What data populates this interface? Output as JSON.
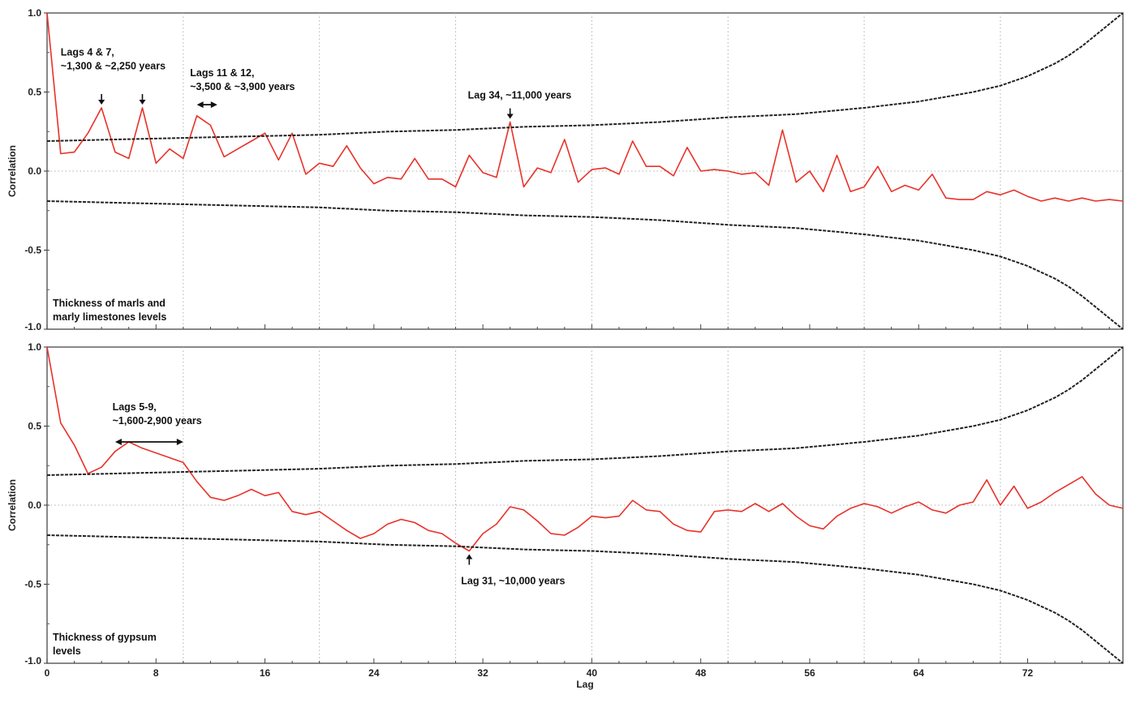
{
  "chart_data": [
    {
      "type": "line",
      "x_axis": {
        "label": "Lag",
        "range": [
          0,
          79
        ],
        "ticks": [
          "0",
          "8",
          "16",
          "24",
          "32",
          "40",
          "48",
          "56",
          "64",
          "72"
        ],
        "tick_values": [
          0,
          8,
          16,
          24,
          32,
          40,
          48,
          56,
          64,
          72
        ]
      },
      "y_axis": {
        "label": "Correlation",
        "range": [
          -1.0,
          1.0
        ],
        "ticks": [
          "1.0",
          "0.5",
          "0.0",
          "-0.5",
          "-1.0"
        ],
        "tick_values": [
          1.0,
          0.5,
          0.0,
          -0.5,
          -1.0
        ]
      },
      "grid": {
        "vertical_dotted_at": [
          10,
          20,
          30,
          40,
          50,
          60,
          70
        ],
        "horizontal_dotted_at": [
          0.0
        ]
      },
      "caption": [
        "Thickness of marls and",
        "marly limestones levels"
      ],
      "series": [
        {
          "role": "correlation",
          "color": "#e8322a",
          "x": [
            0,
            1,
            2,
            3,
            4,
            5,
            6,
            7,
            8,
            9,
            10,
            11,
            12,
            13,
            14,
            15,
            16,
            17,
            18,
            19,
            20,
            21,
            22,
            23,
            24,
            25,
            26,
            27,
            28,
            29,
            30,
            31,
            32,
            33,
            34,
            35,
            36,
            37,
            38,
            39,
            40,
            41,
            42,
            43,
            44,
            45,
            46,
            47,
            48,
            49,
            50,
            51,
            52,
            53,
            54,
            55,
            56,
            57,
            58,
            59,
            60,
            61,
            62,
            63,
            64,
            65,
            66,
            67,
            68,
            69,
            70,
            71,
            72,
            73,
            74,
            75,
            76,
            77,
            78,
            79
          ],
          "y": [
            1.0,
            0.11,
            0.12,
            0.24,
            0.4,
            0.12,
            0.08,
            0.4,
            0.05,
            0.14,
            0.08,
            0.35,
            0.29,
            0.09,
            0.14,
            0.19,
            0.24,
            0.07,
            0.24,
            -0.02,
            0.05,
            0.03,
            0.16,
            0.02,
            -0.08,
            -0.04,
            -0.05,
            0.08,
            -0.05,
            -0.05,
            -0.1,
            0.1,
            -0.01,
            -0.04,
            0.31,
            -0.1,
            0.02,
            -0.01,
            0.2,
            -0.07,
            0.01,
            0.02,
            -0.02,
            0.19,
            0.03,
            0.03,
            -0.03,
            0.15,
            0.0,
            0.01,
            0.0,
            -0.02,
            -0.01,
            -0.09,
            0.26,
            -0.07,
            0.0,
            -0.13,
            0.1,
            -0.13,
            -0.1,
            0.03,
            -0.13,
            -0.09,
            -0.12,
            -0.02,
            -0.17,
            -0.18,
            -0.18,
            -0.13,
            -0.15,
            -0.12,
            -0.16,
            -0.19,
            -0.17,
            -0.19,
            -0.17,
            -0.19,
            -0.18,
            -0.19
          ]
        },
        {
          "role": "upper-confidence-band",
          "color": "#222222",
          "x": [
            0,
            5,
            10,
            15,
            20,
            25,
            30,
            35,
            40,
            45,
            50,
            55,
            60,
            62,
            64,
            66,
            68,
            70,
            72,
            73,
            74,
            75,
            76,
            77,
            78,
            79
          ],
          "y": [
            0.19,
            0.2,
            0.21,
            0.22,
            0.23,
            0.25,
            0.26,
            0.28,
            0.29,
            0.31,
            0.34,
            0.36,
            0.4,
            0.42,
            0.44,
            0.47,
            0.5,
            0.54,
            0.6,
            0.64,
            0.68,
            0.73,
            0.79,
            0.86,
            0.93,
            1.0
          ]
        },
        {
          "role": "lower-confidence-band",
          "color": "#222222",
          "x": [
            0,
            5,
            10,
            15,
            20,
            25,
            30,
            35,
            40,
            45,
            50,
            55,
            60,
            62,
            64,
            66,
            68,
            70,
            72,
            73,
            74,
            75,
            76,
            77,
            78,
            79
          ],
          "y": [
            -0.19,
            -0.2,
            -0.21,
            -0.22,
            -0.23,
            -0.25,
            -0.26,
            -0.28,
            -0.29,
            -0.31,
            -0.34,
            -0.36,
            -0.4,
            -0.42,
            -0.44,
            -0.47,
            -0.5,
            -0.54,
            -0.6,
            -0.64,
            -0.68,
            -0.73,
            -0.79,
            -0.86,
            -0.93,
            -1.0
          ]
        }
      ],
      "annotations": [
        {
          "lines": [
            "Lags 4 & 7,",
            "~1,300 & ~2,250 years"
          ],
          "marker": "down-arrows",
          "at_lags": [
            4,
            7
          ],
          "text_at": [
            1,
            0.73
          ]
        },
        {
          "lines": [
            "Lags 11 & 12,",
            "~3,500 & ~3,900 years"
          ],
          "marker": "double-arrow",
          "from_lag": 11,
          "to_lag": 12.5,
          "marker_y": 0.42,
          "text_at": [
            10.5,
            0.6
          ]
        },
        {
          "lines": [
            "Lag 34, ~11,000 years"
          ],
          "marker": "down-arrows",
          "at_lags": [
            34
          ],
          "text_at": [
            30.9,
            0.46
          ]
        }
      ]
    },
    {
      "type": "line",
      "x_axis": {
        "label": "Lag",
        "range": [
          0,
          79
        ],
        "ticks": [
          "0",
          "8",
          "16",
          "24",
          "32",
          "40",
          "48",
          "56",
          "64",
          "72"
        ],
        "tick_values": [
          0,
          8,
          16,
          24,
          32,
          40,
          48,
          56,
          64,
          72
        ]
      },
      "y_axis": {
        "label": "Correlation",
        "range": [
          -1.0,
          1.0
        ],
        "ticks": [
          "1.0",
          "0.5",
          "0.0",
          "-0.5",
          "-1.0"
        ],
        "tick_values": [
          1.0,
          0.5,
          0.0,
          -0.5,
          -1.0
        ]
      },
      "grid": {
        "vertical_dotted_at": [
          10,
          20,
          30,
          40,
          50,
          60,
          70
        ],
        "horizontal_dotted_at": [
          0.0
        ]
      },
      "caption": [
        "Thickness of gypsum",
        "levels"
      ],
      "series": [
        {
          "role": "correlation",
          "color": "#e8322a",
          "x": [
            0,
            1,
            2,
            3,
            4,
            5,
            6,
            7,
            8,
            9,
            10,
            11,
            12,
            13,
            14,
            15,
            16,
            17,
            18,
            19,
            20,
            21,
            22,
            23,
            24,
            25,
            26,
            27,
            28,
            29,
            30,
            31,
            32,
            33,
            34,
            35,
            36,
            37,
            38,
            39,
            40,
            41,
            42,
            43,
            44,
            45,
            46,
            47,
            48,
            49,
            50,
            51,
            52,
            53,
            54,
            55,
            56,
            57,
            58,
            59,
            60,
            61,
            62,
            63,
            64,
            65,
            66,
            67,
            68,
            69,
            70,
            71,
            72,
            73,
            74,
            75,
            76,
            77,
            78,
            79
          ],
          "y": [
            1.0,
            0.52,
            0.38,
            0.2,
            0.24,
            0.34,
            0.4,
            0.36,
            0.33,
            0.3,
            0.27,
            0.15,
            0.05,
            0.03,
            0.06,
            0.1,
            0.06,
            0.08,
            -0.04,
            -0.06,
            -0.04,
            -0.1,
            -0.16,
            -0.21,
            -0.18,
            -0.12,
            -0.09,
            -0.11,
            -0.16,
            -0.18,
            -0.24,
            -0.29,
            -0.18,
            -0.12,
            -0.01,
            -0.03,
            -0.1,
            -0.18,
            -0.19,
            -0.14,
            -0.07,
            -0.08,
            -0.07,
            0.03,
            -0.03,
            -0.04,
            -0.12,
            -0.16,
            -0.17,
            -0.04,
            -0.03,
            -0.04,
            0.01,
            -0.04,
            0.01,
            -0.07,
            -0.13,
            -0.15,
            -0.07,
            -0.02,
            0.01,
            -0.01,
            -0.05,
            -0.01,
            0.02,
            -0.03,
            -0.05,
            0.0,
            0.02,
            0.16,
            0.0,
            0.12,
            -0.02,
            0.02,
            0.08,
            0.13,
            0.18,
            0.07,
            0.0,
            -0.02
          ]
        },
        {
          "role": "upper-confidence-band",
          "color": "#222222",
          "x": [
            0,
            5,
            10,
            15,
            20,
            25,
            30,
            35,
            40,
            45,
            50,
            55,
            60,
            62,
            64,
            66,
            68,
            70,
            72,
            73,
            74,
            75,
            76,
            77,
            78,
            79
          ],
          "y": [
            0.19,
            0.2,
            0.21,
            0.22,
            0.23,
            0.25,
            0.26,
            0.28,
            0.29,
            0.31,
            0.34,
            0.36,
            0.4,
            0.42,
            0.44,
            0.47,
            0.5,
            0.54,
            0.6,
            0.64,
            0.68,
            0.73,
            0.79,
            0.86,
            0.93,
            1.0
          ]
        },
        {
          "role": "lower-confidence-band",
          "color": "#222222",
          "x": [
            0,
            5,
            10,
            15,
            20,
            25,
            30,
            35,
            40,
            45,
            50,
            55,
            60,
            62,
            64,
            66,
            68,
            70,
            72,
            73,
            74,
            75,
            76,
            77,
            78,
            79
          ],
          "y": [
            -0.19,
            -0.2,
            -0.21,
            -0.22,
            -0.23,
            -0.25,
            -0.26,
            -0.28,
            -0.29,
            -0.31,
            -0.34,
            -0.36,
            -0.4,
            -0.42,
            -0.44,
            -0.47,
            -0.5,
            -0.54,
            -0.6,
            -0.64,
            -0.68,
            -0.73,
            -0.79,
            -0.86,
            -0.93,
            -1.0
          ]
        }
      ],
      "annotations": [
        {
          "lines": [
            "Lags 5-9,",
            "~1,600-2,900 years"
          ],
          "marker": "double-arrow",
          "from_lag": 5,
          "to_lag": 10,
          "marker_y": 0.4,
          "text_at": [
            4.8,
            0.6
          ]
        },
        {
          "lines": [
            "Lag 31, ~10,000 years"
          ],
          "marker": "up-arrow",
          "at_lags": [
            31
          ],
          "text_at": [
            30.4,
            -0.5
          ]
        }
      ]
    }
  ]
}
